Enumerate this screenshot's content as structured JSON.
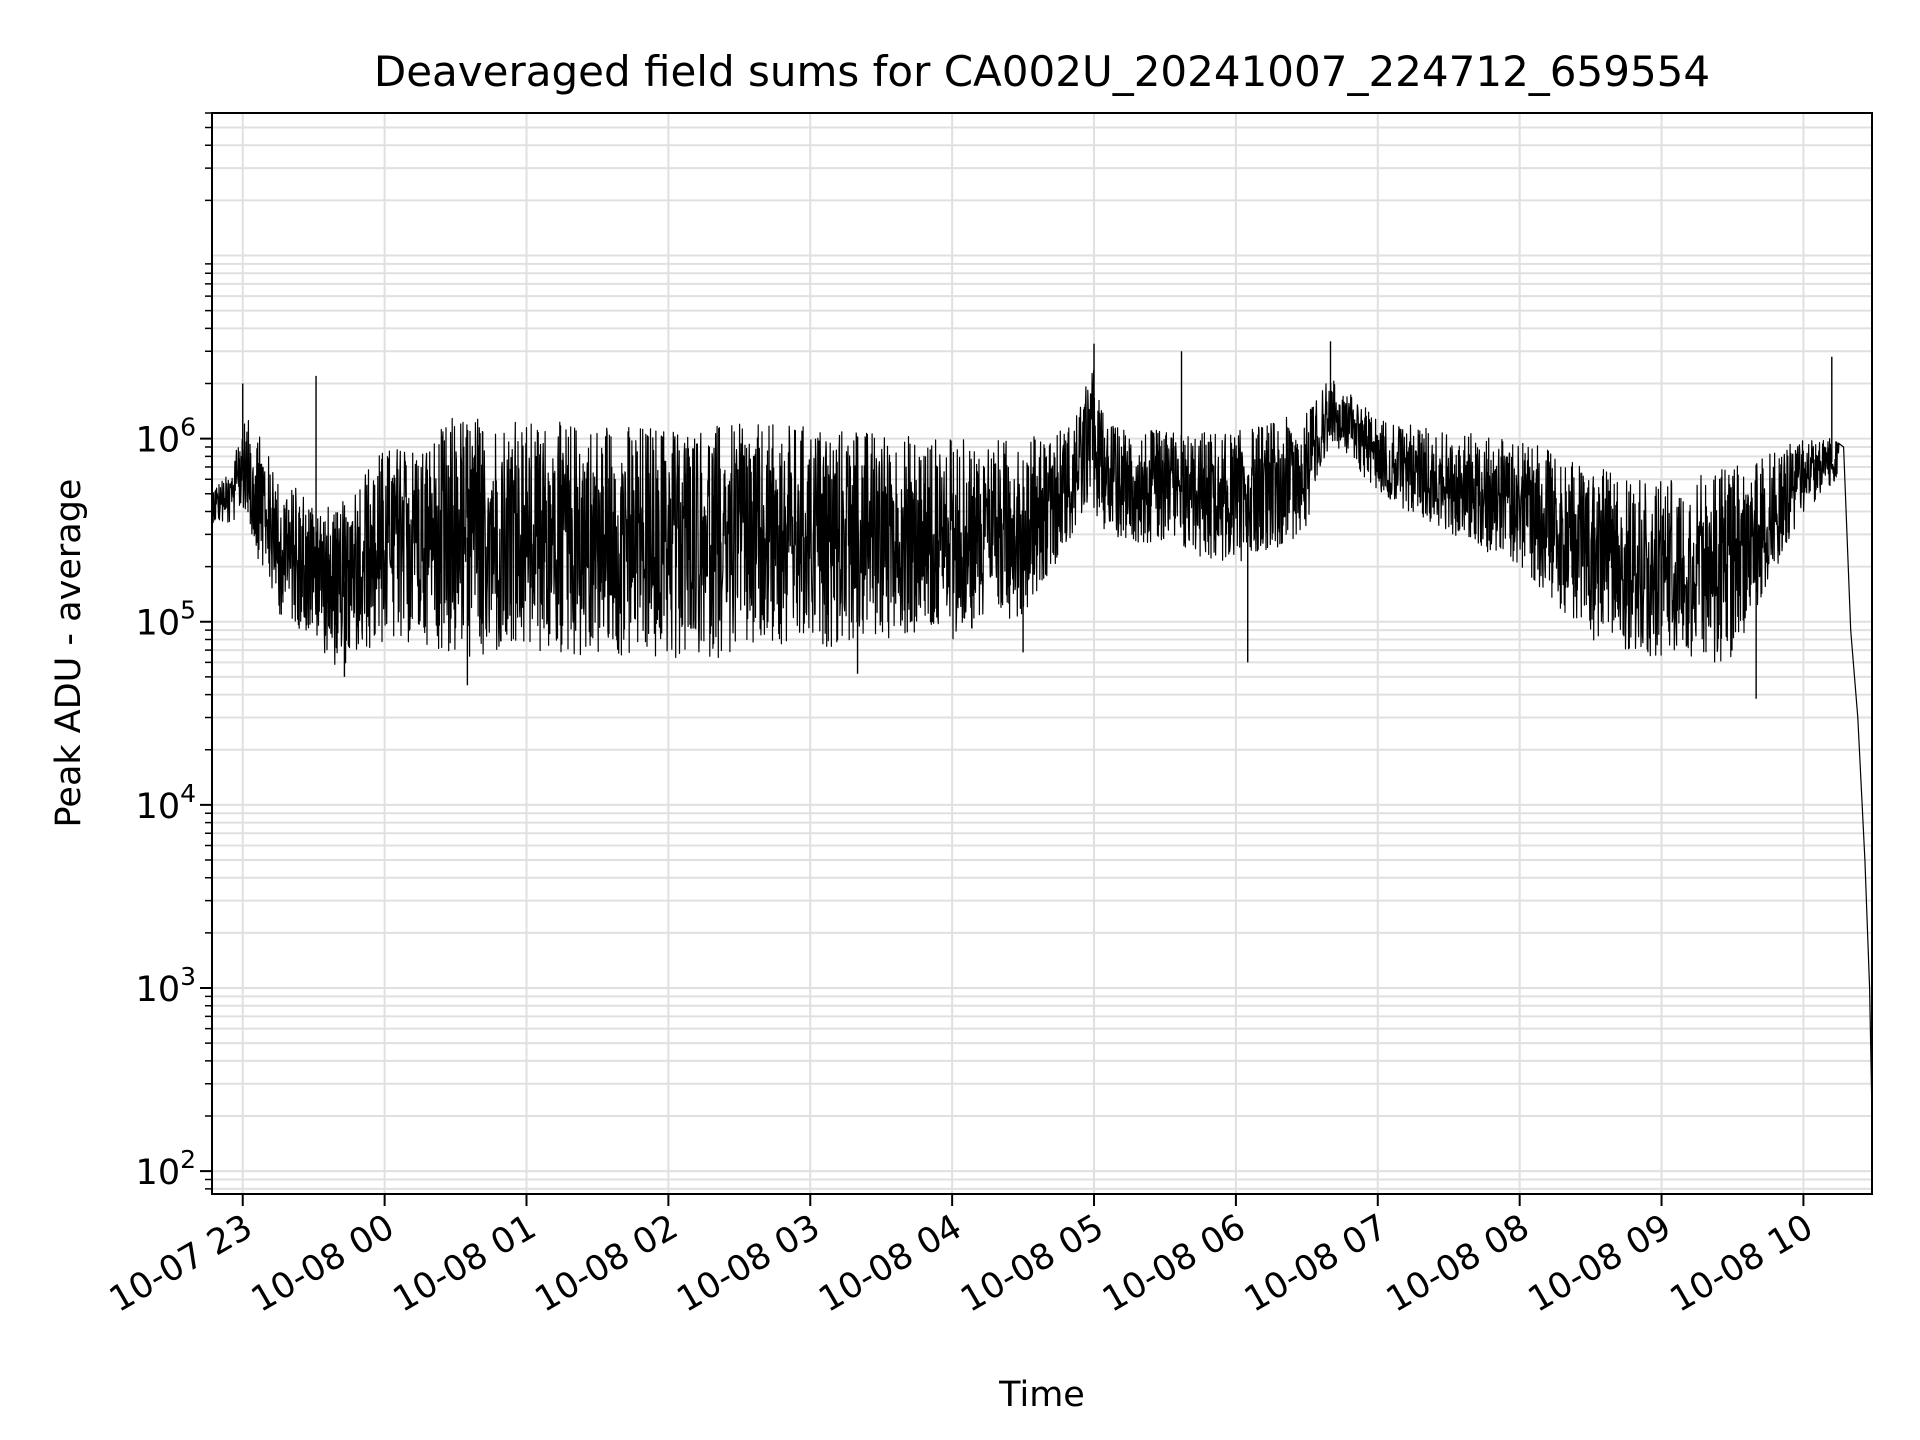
{
  "chart_data": {
    "type": "line",
    "title": "Deaveraged field sums for CA002U_20241007_224712_659554",
    "xlabel": "Time",
    "ylabel": "Peak ADU - average",
    "yscale": "log",
    "ylim": [
      75,
      60000000
    ],
    "xlim": [
      "2024-10-07 22:47",
      "2024-10-08 10:29"
    ],
    "grid": true,
    "line_color": "#000000",
    "x_ticks": [
      {
        "time": "2024-10-07 23:00",
        "label": "10-07 23"
      },
      {
        "time": "2024-10-08 00:00",
        "label": "10-08 00"
      },
      {
        "time": "2024-10-08 01:00",
        "label": "10-08 01"
      },
      {
        "time": "2024-10-08 02:00",
        "label": "10-08 02"
      },
      {
        "time": "2024-10-08 03:00",
        "label": "10-08 03"
      },
      {
        "time": "2024-10-08 04:00",
        "label": "10-08 04"
      },
      {
        "time": "2024-10-08 05:00",
        "label": "10-08 05"
      },
      {
        "time": "2024-10-08 06:00",
        "label": "10-08 06"
      },
      {
        "time": "2024-10-08 07:00",
        "label": "10-08 07"
      },
      {
        "time": "2024-10-08 08:00",
        "label": "10-08 08"
      },
      {
        "time": "2024-10-08 09:00",
        "label": "10-08 09"
      },
      {
        "time": "2024-10-08 10:00",
        "label": "10-08 10"
      }
    ],
    "y_ticks": [
      {
        "value": 100,
        "base": "10",
        "exp": "2"
      },
      {
        "value": 1000,
        "base": "10",
        "exp": "3"
      },
      {
        "value": 10000,
        "base": "10",
        "exp": "4"
      },
      {
        "value": 100000,
        "base": "10",
        "exp": "5"
      },
      {
        "value": 1000000,
        "base": "10",
        "exp": "6"
      }
    ],
    "series": [
      {
        "style": "dense-oscillation",
        "envelope": [
          {
            "time": "2024-10-07 22:47",
            "low": 350000,
            "high": 550000
          },
          {
            "time": "2024-10-07 22:55",
            "low": 330000,
            "high": 650000
          },
          {
            "time": "2024-10-07 23:00",
            "low": 420000,
            "high": 1300000
          },
          {
            "time": "2024-10-07 23:06",
            "low": 230000,
            "high": 1200000
          },
          {
            "time": "2024-10-07 23:15",
            "low": 110000,
            "high": 600000
          },
          {
            "time": "2024-10-07 23:30",
            "low": 80000,
            "high": 500000
          },
          {
            "time": "2024-10-07 23:40",
            "low": 55000,
            "high": 400000
          },
          {
            "time": "2024-10-07 23:50",
            "low": 65000,
            "high": 700000
          },
          {
            "time": "2024-10-08 00:00",
            "low": 75000,
            "high": 900000
          },
          {
            "time": "2024-10-08 00:20",
            "low": 75000,
            "high": 1000000
          },
          {
            "time": "2024-10-08 00:30",
            "low": 60000,
            "high": 1400000
          },
          {
            "time": "2024-10-08 01:00",
            "low": 65000,
            "high": 1250000
          },
          {
            "time": "2024-10-08 02:00",
            "low": 60000,
            "high": 1200000
          },
          {
            "time": "2024-10-08 03:00",
            "low": 70000,
            "high": 1200000
          },
          {
            "time": "2024-10-08 03:30",
            "low": 80000,
            "high": 1100000
          },
          {
            "time": "2024-10-08 04:00",
            "low": 80000,
            "high": 1000000
          },
          {
            "time": "2024-10-08 04:30",
            "low": 110000,
            "high": 1000000
          },
          {
            "time": "2024-10-08 04:50",
            "low": 280000,
            "high": 1200000
          },
          {
            "time": "2024-10-08 05:00",
            "low": 400000,
            "high": 2500000
          },
          {
            "time": "2024-10-08 05:05",
            "low": 300000,
            "high": 1200000
          },
          {
            "time": "2024-10-08 05:30",
            "low": 250000,
            "high": 1100000
          },
          {
            "time": "2024-10-08 06:00",
            "low": 200000,
            "high": 1100000
          },
          {
            "time": "2024-10-08 06:30",
            "low": 300000,
            "high": 1400000
          },
          {
            "time": "2024-10-08 06:40",
            "low": 1000000,
            "high": 2200000
          },
          {
            "time": "2024-10-08 07:00",
            "low": 500000,
            "high": 1300000
          },
          {
            "time": "2024-10-08 07:30",
            "low": 300000,
            "high": 1100000
          },
          {
            "time": "2024-10-08 08:00",
            "low": 200000,
            "high": 1000000
          },
          {
            "time": "2024-10-08 08:30",
            "low": 80000,
            "high": 700000
          },
          {
            "time": "2024-10-08 09:00",
            "low": 60000,
            "high": 600000
          },
          {
            "time": "2024-10-08 09:30",
            "low": 60000,
            "high": 700000
          },
          {
            "time": "2024-10-08 10:00",
            "low": 400000,
            "high": 1000000
          },
          {
            "time": "2024-10-08 10:15",
            "low": 600000,
            "high": 1000000
          }
        ],
        "tail": [
          {
            "time": "2024-10-08 10:17",
            "value": 900000
          },
          {
            "time": "2024-10-08 10:20",
            "value": 90000
          },
          {
            "time": "2024-10-08 10:23",
            "value": 30000
          },
          {
            "time": "2024-10-08 10:26",
            "value": 5000
          },
          {
            "time": "2024-10-08 10:28",
            "value": 1000
          },
          {
            "time": "2024-10-08 10:29",
            "value": 200
          }
        ],
        "spikes": [
          {
            "time": "2024-10-07 23:00",
            "value": 2000000
          },
          {
            "time": "2024-10-07 23:31",
            "value": 2200000
          },
          {
            "time": "2024-10-07 23:43",
            "value": 50000
          },
          {
            "time": "2024-10-08 00:35",
            "value": 45000
          },
          {
            "time": "2024-10-08 03:20",
            "value": 52000
          },
          {
            "time": "2024-10-08 04:30",
            "value": 68000
          },
          {
            "time": "2024-10-08 05:00",
            "value": 3300000
          },
          {
            "time": "2024-10-08 05:37",
            "value": 3000000
          },
          {
            "time": "2024-10-08 06:05",
            "value": 60000
          },
          {
            "time": "2024-10-08 06:40",
            "value": 3400000
          },
          {
            "time": "2024-10-08 09:40",
            "value": 38000
          },
          {
            "time": "2024-10-08 10:12",
            "value": 2800000
          }
        ]
      }
    ]
  }
}
